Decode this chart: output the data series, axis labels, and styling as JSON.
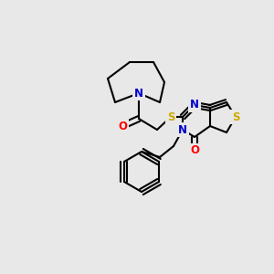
{
  "bg_color": "#e8e8e8",
  "atom_colors": {
    "C": "#000000",
    "N": "#0000cc",
    "O": "#ff0000",
    "S": "#ccaa00"
  },
  "bond_color": "#000000",
  "bond_width": 1.5,
  "font_size_atom": 8.5,
  "title": ""
}
